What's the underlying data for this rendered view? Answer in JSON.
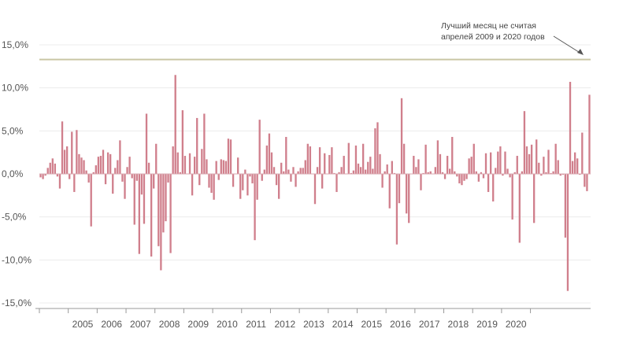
{
  "chart_data": {
    "type": "bar",
    "ylim": [
      -15,
      15
    ],
    "y_ticks": [
      "15,0%",
      "10,0%",
      "5,0%",
      "0,0%",
      "-5,0%",
      "-10,0%",
      "-15,0%"
    ],
    "y_tick_values": [
      15,
      10,
      5,
      0,
      -5,
      -10,
      -15
    ],
    "x_start_year": 2004,
    "x_tick_labels": [
      "2005",
      "2006",
      "2007",
      "2008",
      "2009",
      "2010",
      "2011",
      "2012",
      "2013",
      "2014",
      "2015",
      "2016",
      "2017",
      "2018",
      "2019",
      "2020"
    ],
    "grid": true,
    "bar_color": "#d07f8c",
    "reference_line": {
      "value": 13.3,
      "color": "#c9c6a5"
    },
    "annotation": {
      "lines": [
        "Лучший месяц не считая",
        "апрелей 2009 и 2020 годов"
      ]
    },
    "values": [
      -0.4,
      -0.6,
      -0.2,
      0.7,
      1.3,
      1.8,
      1.2,
      -0.3,
      -1.7,
      6.1,
      2.8,
      3.2,
      -0.6,
      4.9,
      -2.1,
      5.1,
      2.3,
      1.9,
      1.6,
      0.4,
      -1.0,
      -6.1,
      0.2,
      1.0,
      2.0,
      2.1,
      2.8,
      -1.2,
      2.5,
      2.3,
      -2.3,
      0.7,
      1.6,
      3.9,
      -0.9,
      -2.9,
      0.8,
      2.0,
      -0.5,
      -5.9,
      -0.8,
      -9.3,
      -2.4,
      -5.8,
      7.0,
      1.3,
      -9.6,
      -1.7,
      3.5,
      -8.4,
      -11.2,
      -6.8,
      -5.5,
      -1.0,
      -9.2,
      3.2,
      11.5,
      2.5,
      0.2,
      7.4,
      2.1,
      0.0,
      2.4,
      -2.5,
      2.0,
      6.5,
      -1.3,
      2.9,
      7.0,
      1.7,
      -1.6,
      -2.2,
      -3.0,
      1.5,
      -0.7,
      1.7,
      1.6,
      1.5,
      4.1,
      4.0,
      -1.5,
      0.0,
      1.9,
      -2.9,
      -1.9,
      0.5,
      -2.5,
      -0.3,
      -1.1,
      -7.7,
      -3.0,
      6.3,
      -0.8,
      0.5,
      3.3,
      4.7,
      2.5,
      0.8,
      -1.3,
      -2.9,
      1.3,
      0.3,
      4.3,
      0.5,
      -0.9,
      0.8,
      -1.5,
      0.3,
      0.7,
      0.7,
      1.6,
      3.5,
      3.2,
      0.0,
      -3.5,
      0.8,
      3.1,
      -1.7,
      2.4,
      0.0,
      2.2,
      3.1,
      0.1,
      -2.1,
      0.2,
      0.8,
      2.1,
      0.0,
      3.6,
      0.1,
      0.4,
      3.3,
      1.2,
      0.8,
      3.5,
      0.5,
      1.4,
      2.0,
      0.6,
      5.3,
      6.0,
      2.3,
      -1.6,
      0.3,
      1.1,
      -4.0,
      1.5,
      0.1,
      -8.2,
      -3.4,
      8.8,
      3.5,
      -4.6,
      -5.7,
      0.0,
      2.1,
      0.8,
      1.7,
      -1.9,
      0.1,
      3.4,
      0.2,
      0.3,
      0.0,
      0.8,
      3.9,
      2.3,
      0.2,
      -0.6,
      2.1,
      0.6,
      4.3,
      0.3,
      -0.3,
      -1.1,
      -1.3,
      -0.8,
      -0.6,
      1.8,
      2.0,
      3.5,
      0.3,
      -0.9,
      0.2,
      -0.5,
      2.4,
      -2.1,
      2.5,
      -3.2,
      0.7,
      2.6,
      3.2,
      -0.2,
      2.6,
      0.6,
      -0.4,
      -5.3,
      0.2,
      2.1,
      -8.0,
      0.3,
      7.3,
      3.2,
      2.3,
      3.4,
      -5.7,
      4.0,
      1.3,
      -0.2,
      2.0,
      0.2,
      2.8,
      0.1,
      0.3,
      3.5,
      1.6,
      -0.2,
      -0.1,
      -7.4,
      -13.6,
      10.7,
      1.5,
      2.5,
      1.8,
      -0.1,
      4.8,
      -1.5,
      -2.0,
      9.2
    ]
  }
}
